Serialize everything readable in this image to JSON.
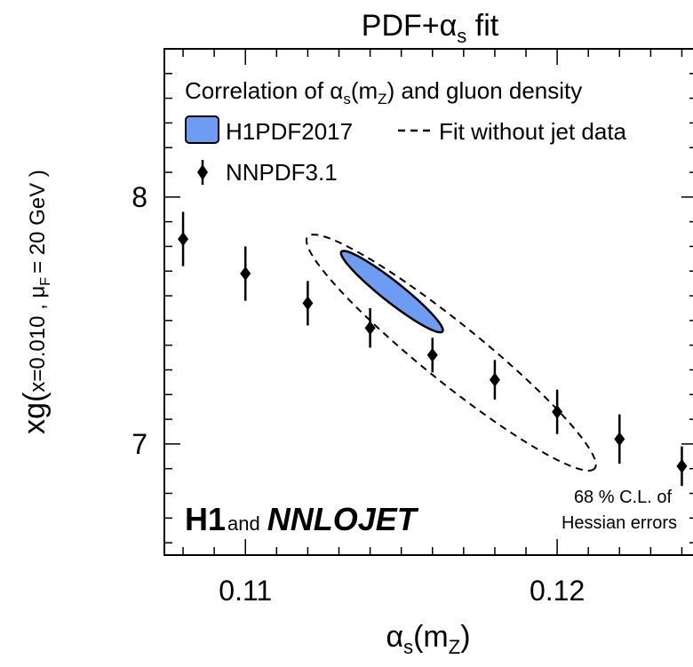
{
  "chart_data": {
    "type": "scatter",
    "title": "PDF+αs fit",
    "title_main": "PDF+α",
    "title_sub": "s",
    "title_end": " fit",
    "xlabel": "αs(mZ)",
    "xlabel_parts": {
      "alpha": "α",
      "s": "s",
      "open": "(m",
      "z": "Z",
      "close": ")"
    },
    "ylabel": "xg( x=0.010 , μF = 20 GeV )",
    "ylabel_parts": {
      "xg": "xg(",
      "x": "x=0.010 , μ",
      "f": "F",
      "rest": "= 20 GeV )"
    },
    "xlim": [
      0.1074,
      0.1245
    ],
    "ylim": [
      6.55,
      8.6
    ],
    "x_ticks": [
      0.11,
      0.12
    ],
    "x_tick_labels": [
      "0.11",
      "0.12"
    ],
    "y_ticks": [
      7,
      8
    ],
    "y_tick_labels": [
      "7",
      "8"
    ],
    "legend": {
      "title_pre": "Correlation of α",
      "title_s": "s",
      "title_mid": "(m",
      "title_z": "Z",
      "title_post": ") and gluon density",
      "h1pdf_label": "H1PDF2017",
      "nojet_label": "Fit without jet data",
      "nnpdf_label": "NNPDF3.1",
      "placement": "top-left"
    },
    "series": [
      {
        "name": "NNPDF3.1",
        "x": [
          0.108,
          0.11,
          0.112,
          0.114,
          0.116,
          0.118,
          0.12,
          0.122,
          0.124
        ],
        "y": [
          7.83,
          7.69,
          7.57,
          7.47,
          7.36,
          7.26,
          7.13,
          7.02,
          6.91
        ],
        "err": [
          0.11,
          0.11,
          0.09,
          0.08,
          0.07,
          0.08,
          0.09,
          0.1,
          0.08
        ]
      }
    ],
    "ellipses": [
      {
        "name": "H1PDF2017",
        "center": [
          0.1147,
          7.617
        ],
        "semi_axes_data": [
          [
            0.00162,
            -0.1617
          ],
          [
            -0.00021,
            -0.0323
          ]
        ],
        "fill": "#6f9cf3",
        "stroke": "#000000",
        "dashed": false
      },
      {
        "name": "Fit without jet data",
        "center": [
          0.1166,
          7.37
        ],
        "semi_axes_data": [
          [
            0.0046,
            -0.47
          ],
          [
            -0.00063,
            -0.087
          ]
        ],
        "fill": "none",
        "stroke": "#000000",
        "dashed": true
      }
    ],
    "annotations": {
      "cl_line1": "68 % C.L. of",
      "cl_line2": "Hessian errors",
      "h1": "H1",
      "and": "and",
      "nnlojet": "NNLOJET"
    },
    "grid": false,
    "colors": {
      "ellipse_fill": "#6f9cf3",
      "axis": "#000000"
    }
  }
}
